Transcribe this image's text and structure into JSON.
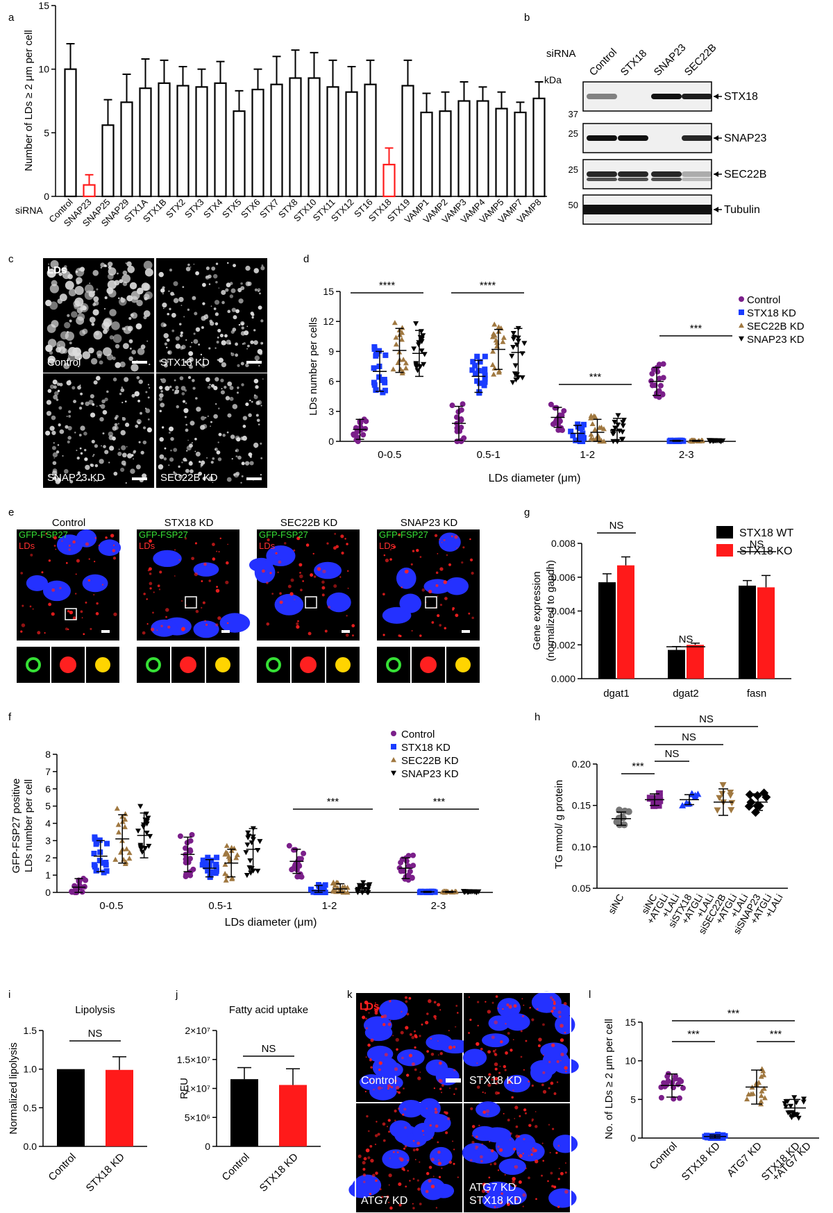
{
  "colors": {
    "control": "#7b1f8a",
    "stx18": "#1a3cff",
    "sec22b": "#a07840",
    "snap23": "#000000",
    "red": "#ff1a1a",
    "black": "#000000"
  },
  "panel_letters": [
    "a",
    "b",
    "c",
    "d",
    "e",
    "f",
    "g",
    "h",
    "i",
    "j",
    "k",
    "l"
  ],
  "chart_data": [
    {
      "panel": "a",
      "type": "bar",
      "ylabel": "Number of LDs ≥ 2 μm per cell",
      "xprefix": "siRNA",
      "ylim": [
        0,
        15
      ],
      "yticks": [
        0,
        5,
        10,
        15
      ],
      "categories": [
        "Control",
        "SNAP23",
        "SNAP25",
        "SNAP29",
        "STX1A",
        "STX1B",
        "STX2",
        "STX3",
        "STX4",
        "STX5",
        "STX6",
        "STX7",
        "STX8",
        "STX10",
        "STX11",
        "STX12",
        "ST16",
        "STX18",
        "STX19",
        "VAMP1",
        "VAMP2",
        "VAMP3",
        "VAMP4",
        "VAMP5",
        "VAMP7",
        "VAMP8"
      ],
      "values": [
        10.0,
        0.9,
        5.6,
        7.4,
        8.5,
        8.9,
        8.7,
        8.6,
        8.9,
        6.7,
        8.4,
        8.8,
        9.3,
        9.3,
        8.6,
        8.2,
        8.8,
        2.5,
        8.7,
        6.6,
        6.7,
        7.5,
        7.5,
        6.9,
        6.6,
        7.7
      ],
      "errors": [
        2.0,
        0.8,
        2.0,
        2.2,
        2.3,
        1.8,
        1.5,
        1.4,
        1.7,
        1.6,
        1.6,
        2.2,
        2.2,
        2.0,
        2.1,
        2.0,
        1.9,
        1.3,
        2.0,
        1.5,
        1.5,
        1.5,
        1.1,
        1.3,
        0.8,
        1.3
      ],
      "highlight": [
        "SNAP23",
        "STX18"
      ]
    },
    {
      "panel": "d",
      "type": "scatter",
      "ylabel": "LDs number per cells",
      "xlabel": "LDs diameter (μm)",
      "ylim": [
        0,
        15
      ],
      "yticks": [
        0,
        3,
        6,
        9,
        12,
        15
      ],
      "categories": [
        "0-0.5",
        "0.5-1",
        "1-2",
        "2-3"
      ],
      "series": [
        {
          "name": "Control",
          "mean": [
            1.2,
            1.8,
            2.4,
            6.0
          ],
          "sd": [
            1.0,
            1.7,
            1.0,
            1.4
          ]
        },
        {
          "name": "STX18 KD",
          "mean": [
            7.0,
            6.5,
            0.8,
            0.05
          ],
          "sd": [
            2.0,
            1.6,
            0.8,
            0.05
          ]
        },
        {
          "name": "SEC22B KD",
          "mean": [
            9.1,
            9.2,
            0.9,
            0.05
          ],
          "sd": [
            2.2,
            2.0,
            1.3,
            0.05
          ]
        },
        {
          "name": "SNAP23 KD",
          "mean": [
            8.8,
            8.9,
            1.1,
            0.05
          ],
          "sd": [
            2.3,
            2.4,
            1.2,
            0.05
          ]
        }
      ],
      "significance": [
        {
          "group": "0-0.5",
          "label": "****"
        },
        {
          "group": "0.5-1",
          "label": "****"
        },
        {
          "group": "1-2",
          "label": "***"
        },
        {
          "group": "2-3",
          "label": "***"
        }
      ]
    },
    {
      "panel": "f",
      "type": "scatter",
      "ylabel": "GFP-FSP27 positive LDs number per cell",
      "xlabel": "LDs diameter (μm)",
      "ylim": [
        0,
        8
      ],
      "yticks": [
        0,
        1,
        2,
        3,
        4,
        5,
        6,
        7,
        8
      ],
      "categories": [
        "0-0.5",
        "0.5-1",
        "1-2",
        "2-3"
      ],
      "series": [
        {
          "name": "Control",
          "mean": [
            0.3,
            2.2,
            1.8,
            1.4
          ],
          "sd": [
            0.5,
            1.0,
            0.7,
            0.6
          ]
        },
        {
          "name": "STX18 KD",
          "mean": [
            2.1,
            1.4,
            0.1,
            0.03
          ],
          "sd": [
            0.9,
            0.5,
            0.3,
            0.03
          ]
        },
        {
          "name": "SEC22B KD",
          "mean": [
            3.1,
            1.7,
            0.2,
            0.03
          ],
          "sd": [
            1.4,
            0.8,
            0.3,
            0.03
          ]
        },
        {
          "name": "SNAP23 KD",
          "mean": [
            3.3,
            2.5,
            0.2,
            0.03
          ],
          "sd": [
            1.3,
            1.2,
            0.3,
            0.03
          ]
        }
      ],
      "significance": [
        {
          "group": "1-2",
          "label": "***"
        },
        {
          "group": "2-3",
          "label": "***"
        }
      ]
    },
    {
      "panel": "g",
      "type": "bar",
      "ylabel": "Gene expression (normalized to gapdh)",
      "ylim": [
        0,
        0.008
      ],
      "yticks": [
        "0.000",
        "0.002",
        "0.004",
        "0.006",
        "0.008"
      ],
      "categories": [
        "dgat1",
        "dgat2",
        "fasn"
      ],
      "series": [
        {
          "name": "STX18 WT",
          "values": [
            0.0057,
            0.0017,
            0.0055
          ],
          "errors": [
            0.0005,
            0.0002,
            0.0003
          ]
        },
        {
          "name": "STX18 KO",
          "values": [
            0.0067,
            0.002,
            0.0054
          ],
          "errors": [
            0.0005,
            0.0001,
            0.0007
          ]
        }
      ],
      "significance": [
        "NS",
        "NS",
        "NS"
      ]
    },
    {
      "panel": "h",
      "type": "scatter",
      "ylabel": "TG mmol/ g protein",
      "ylim": [
        0.05,
        0.2
      ],
      "yticks": [
        "0.05",
        "0.10",
        "0.15",
        "0.20"
      ],
      "categories": [
        "siNC",
        "siNC +ATGLi +LALi",
        "siSTX18 +ATGLi +LALi",
        "siSEC22B +ATGLi +LALi",
        "siSNAP23 +ATGLi +LALi"
      ],
      "mean": [
        0.134,
        0.157,
        0.157,
        0.154,
        0.154
      ],
      "sd": [
        0.008,
        0.007,
        0.006,
        0.016,
        0.01
      ],
      "significance": [
        "***",
        "NS",
        "NS",
        "NS"
      ]
    },
    {
      "panel": "i",
      "type": "bar",
      "title": "Lipolysis",
      "ylabel": "Normalized lipolysis",
      "ylim": [
        0,
        1.5
      ],
      "yticks": [
        "0.0",
        "0.5",
        "1.0",
        "1.5"
      ],
      "categories": [
        "Control",
        "STX18 KD"
      ],
      "values": [
        1.0,
        0.99
      ],
      "errors": [
        0,
        0.17
      ],
      "significance": "NS"
    },
    {
      "panel": "j",
      "type": "bar",
      "title": "Fatty acid uptake",
      "ylabel": "RFU",
      "ylim": [
        0,
        20000000
      ],
      "yticks": [
        "0",
        "5×10⁶",
        "1×10⁷",
        "1.5×10⁷",
        "2×10⁷"
      ],
      "categories": [
        "Control",
        "STX18 KD"
      ],
      "values": [
        11600000,
        10600000
      ],
      "errors": [
        2000000,
        2800000
      ],
      "significance": "NS"
    },
    {
      "panel": "l",
      "type": "scatter",
      "ylabel": "No. of LDs ≥ 2 μm per cell",
      "ylim": [
        0,
        15
      ],
      "yticks": [
        0,
        5,
        10,
        15
      ],
      "categories": [
        "Control",
        "STX18 KD",
        "ATG7 KD",
        "STX18 KD +ATG7 KD"
      ],
      "mean": [
        6.8,
        0.2,
        6.6,
        3.9
      ],
      "sd": [
        1.5,
        0.2,
        2.2,
        1.1
      ],
      "significance": [
        "***",
        "***",
        "***"
      ]
    }
  ],
  "blot": {
    "siRNA_label": "siRNA",
    "kDa_label": "kDa",
    "lanes": [
      "Control",
      "STX18",
      "SNAP23",
      "SEC22B"
    ],
    "rows": [
      {
        "marker": "37",
        "protein": "STX18"
      },
      {
        "marker": "25",
        "protein": "SNAP23"
      },
      {
        "marker": "25",
        "protein": "SEC22B"
      },
      {
        "marker": "50",
        "protein": "Tubulin"
      }
    ]
  },
  "panel_c": {
    "tiles": [
      "Control",
      "STX18 KD",
      "SNAP23 KD",
      "SEC22B KD"
    ],
    "stain": "LDs"
  },
  "panel_e": {
    "columns": [
      "Control",
      "STX18 KD",
      "SEC22B KD",
      "SNAP23 KD"
    ],
    "green_label": "GFP-FSP27",
    "red_label": "LDs"
  },
  "panel_k": {
    "tiles": [
      "Control",
      "STX18 KD",
      "ATG7 KD",
      "ATG7 KD STX18 KD"
    ],
    "stain": "LDs"
  }
}
